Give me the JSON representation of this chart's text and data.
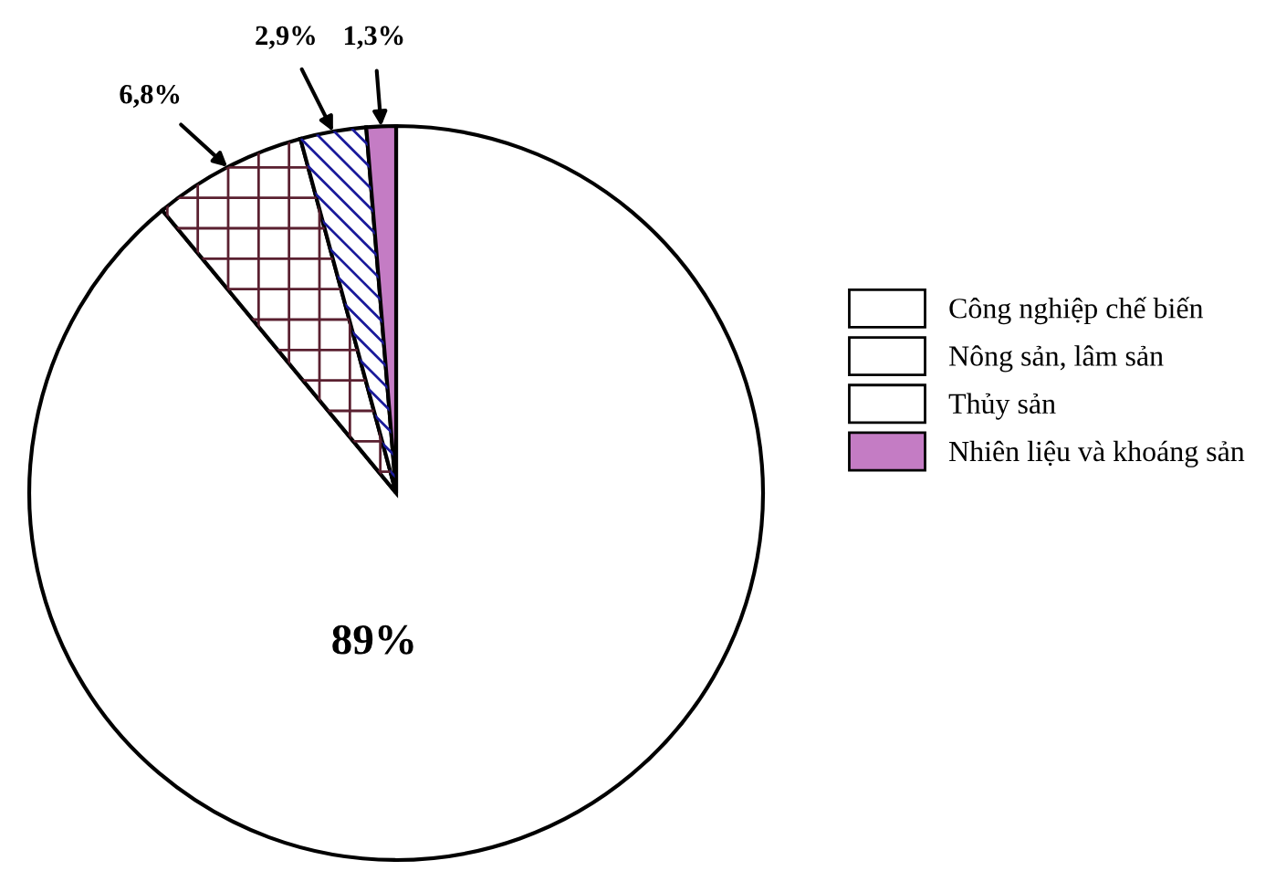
{
  "chart_data": {
    "type": "pie",
    "categories": [
      "Công nghiệp chế biến",
      "Nông sản, lâm sản",
      "Thủy sản",
      "Nhiên liệu và khoáng sản"
    ],
    "values": [
      89,
      6.8,
      2.9,
      1.3
    ],
    "colors": [
      "#ffffff",
      "#ffffff",
      "#ffffff",
      "#c47cc4"
    ],
    "value_labels": [
      "89%",
      "6,8%",
      "2,9%",
      "1,3%"
    ],
    "legend": "right"
  }
}
